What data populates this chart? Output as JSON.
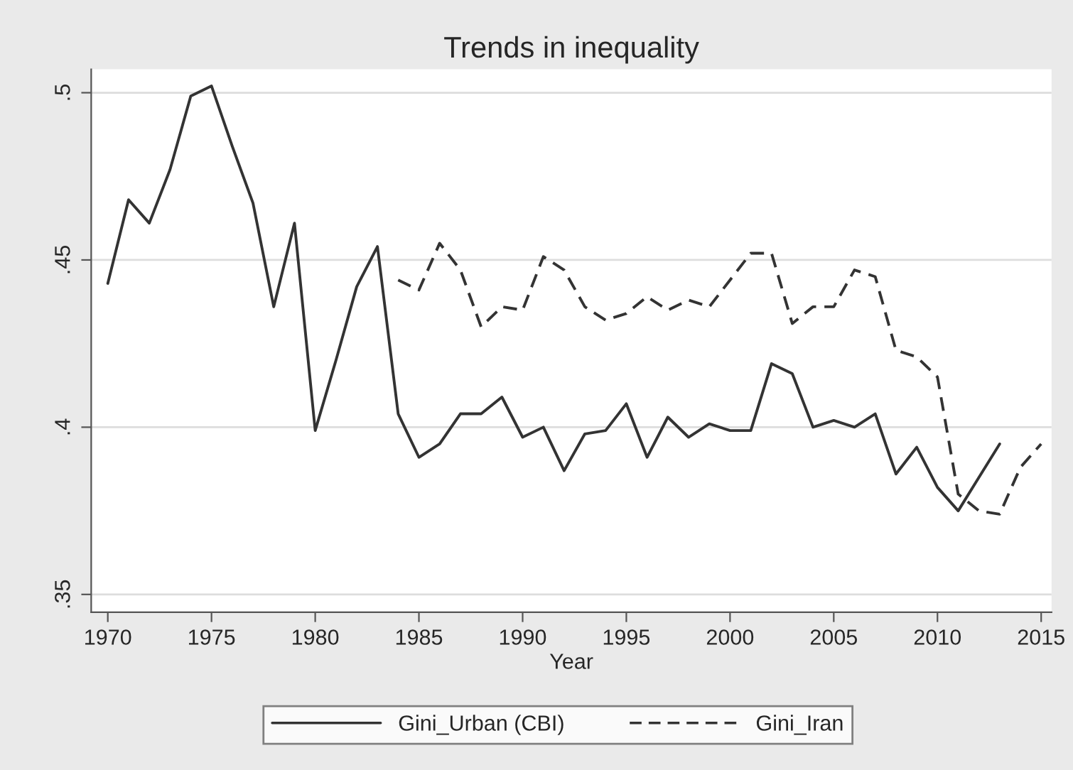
{
  "chart_data": {
    "type": "line",
    "title": "Trends in inequality",
    "xlabel": "Year",
    "x": [
      1970,
      1971,
      1972,
      1973,
      1974,
      1975,
      1976,
      1977,
      1978,
      1979,
      1980,
      1981,
      1982,
      1983,
      1984,
      1985,
      1986,
      1987,
      1988,
      1989,
      1990,
      1991,
      1992,
      1993,
      1994,
      1995,
      1996,
      1997,
      1998,
      1999,
      2000,
      2001,
      2002,
      2003,
      2004,
      2005,
      2006,
      2007,
      2008,
      2009,
      2010,
      2011,
      2012,
      2013,
      2014,
      2015
    ],
    "series": [
      {
        "name": "Gini_Urban (CBI)",
        "color": "#333333",
        "line_style": "solid",
        "values": [
          0.443,
          0.468,
          0.461,
          0.477,
          0.499,
          0.502,
          0.484,
          0.467,
          0.436,
          0.461,
          0.399,
          0.42,
          0.442,
          0.454,
          0.404,
          0.391,
          0.395,
          0.404,
          0.404,
          0.409,
          0.397,
          0.4,
          0.387,
          0.398,
          0.399,
          0.407,
          0.391,
          0.403,
          0.397,
          0.401,
          0.399,
          0.399,
          0.419,
          0.416,
          0.4,
          0.402,
          0.4,
          0.404,
          0.386,
          0.394,
          0.382,
          0.375,
          0.385,
          0.395,
          null,
          null
        ]
      },
      {
        "name": "Gini_Iran",
        "color": "#333333",
        "line_style": "dashed",
        "values": [
          null,
          null,
          null,
          null,
          null,
          null,
          null,
          null,
          null,
          null,
          null,
          null,
          null,
          null,
          0.444,
          0.441,
          0.455,
          0.447,
          0.43,
          0.436,
          0.435,
          0.451,
          0.447,
          0.436,
          0.432,
          0.434,
          0.439,
          0.435,
          0.438,
          0.436,
          0.444,
          0.452,
          0.452,
          0.431,
          0.436,
          0.436,
          0.447,
          0.445,
          0.423,
          0.421,
          0.415,
          0.38,
          0.375,
          0.374,
          0.388,
          0.395
        ]
      }
    ],
    "xlim": [
      1969.2,
      2015.5
    ],
    "xticks": [
      1970,
      1975,
      1980,
      1985,
      1990,
      1995,
      2000,
      2005,
      2010,
      2015
    ],
    "ylim": [
      0.3447,
      0.507
    ],
    "yticks": [
      {
        "value": 0.35,
        "label": ".35"
      },
      {
        "value": 0.4,
        "label": ".4"
      },
      {
        "value": 0.45,
        "label": ".45"
      },
      {
        "value": 0.5,
        "label": ".5"
      }
    ],
    "grid": "y",
    "legend": "bottom"
  }
}
